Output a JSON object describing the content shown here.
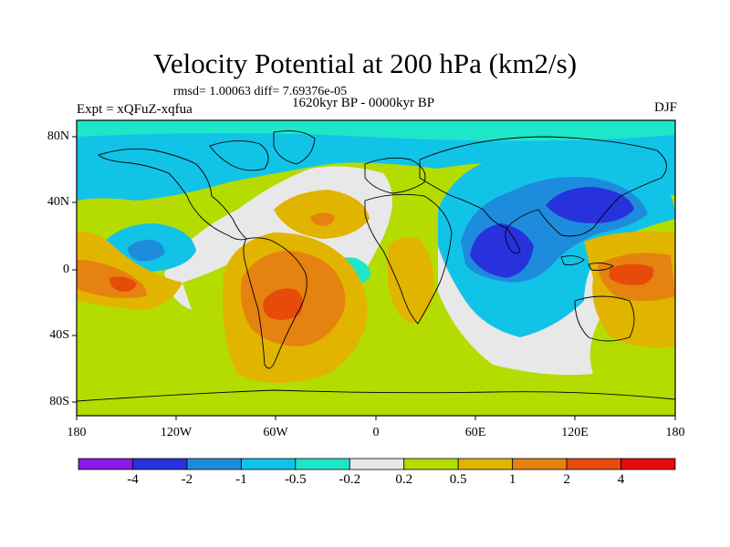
{
  "title": "Velocity Potential at 200 hPa (km2/s)",
  "stats": "rmsd= 1.00063 diff= 7.69376e-05",
  "experiment": "Expt = xQFuZ-xqfua",
  "period": "1620kyr BP - 0000kyr BP",
  "season": "DJF",
  "lat_labels": [
    "80N",
    "40N",
    "0",
    "40S",
    "80S"
  ],
  "lon_labels": [
    "180",
    "120W",
    "60W",
    "0",
    "60E",
    "120E",
    "180"
  ],
  "colorbar": {
    "labels": [
      "-4",
      "-2",
      "-1",
      "-0.5",
      "-0.2",
      "0.2",
      "0.5",
      "1",
      "2",
      "4"
    ],
    "colors": [
      "#8a1ae6",
      "#2832dc",
      "#1e8cdc",
      "#12c3e8",
      "#1ee6c8",
      "#e8e8e8",
      "#b4dc00",
      "#e1b400",
      "#e6820f",
      "#e64b0a",
      "#e60a0a"
    ]
  }
}
